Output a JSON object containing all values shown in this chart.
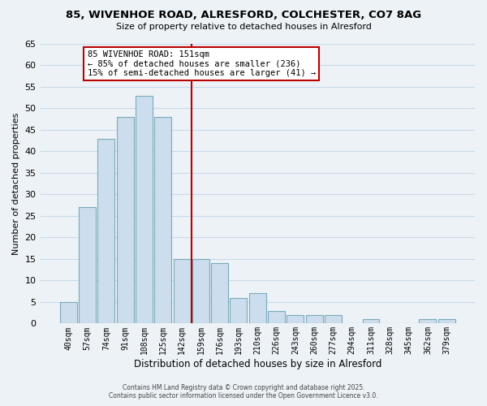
{
  "title": "85, WIVENHOE ROAD, ALRESFORD, COLCHESTER, CO7 8AG",
  "subtitle": "Size of property relative to detached houses in Alresford",
  "xlabel": "Distribution of detached houses by size in Alresford",
  "ylabel": "Number of detached properties",
  "categories": [
    "40sqm",
    "57sqm",
    "74sqm",
    "91sqm",
    "108sqm",
    "125sqm",
    "142sqm",
    "159sqm",
    "176sqm",
    "193sqm",
    "210sqm",
    "226sqm",
    "243sqm",
    "260sqm",
    "277sqm",
    "294sqm",
    "311sqm",
    "328sqm",
    "345sqm",
    "362sqm",
    "379sqm"
  ],
  "values": [
    5,
    27,
    43,
    48,
    53,
    48,
    15,
    15,
    14,
    6,
    7,
    3,
    2,
    2,
    2,
    0,
    1,
    0,
    0,
    1,
    1
  ],
  "bar_color": "#ccdded",
  "bar_edge_color": "#7aaabb",
  "reference_line_color": "#bb0000",
  "annotation_title": "85 WIVENHOE ROAD: 151sqm",
  "annotation_line1": "← 85% of detached houses are smaller (236)",
  "annotation_line2": "15% of semi-detached houses are larger (41) →",
  "annotation_box_facecolor": "#ffffff",
  "annotation_box_edgecolor": "#bb0000",
  "ylim": [
    0,
    65
  ],
  "yticks": [
    0,
    5,
    10,
    15,
    20,
    25,
    30,
    35,
    40,
    45,
    50,
    55,
    60,
    65
  ],
  "grid_color": "#c8dae8",
  "background_color": "#edf2f7",
  "footer_line1": "Contains HM Land Registry data © Crown copyright and database right 2025.",
  "footer_line2": "Contains public sector information licensed under the Open Government Licence v3.0."
}
